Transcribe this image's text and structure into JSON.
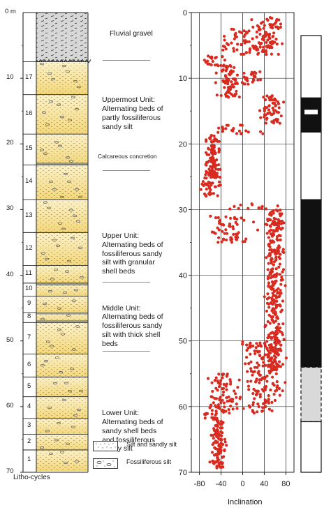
{
  "depth_axis": {
    "unit_label": "0 m",
    "ticks": [
      "10",
      "20",
      "30",
      "40",
      "50",
      "60",
      "70"
    ],
    "tick_values": [
      10,
      20,
      30,
      40,
      50,
      60,
      70
    ]
  },
  "column": {
    "footer_label": "Litho-cycles",
    "cycles": [
      {
        "label": "17",
        "top": 7.5,
        "bottom": 12.5
      },
      {
        "label": "16",
        "top": 12.5,
        "bottom": 18.5
      },
      {
        "label": "15",
        "top": 18.5,
        "bottom": 23.2
      },
      {
        "label": "14",
        "top": 23.2,
        "bottom": 28.5
      },
      {
        "label": "13",
        "top": 28.5,
        "bottom": 33.5
      },
      {
        "label": "12",
        "top": 33.5,
        "bottom": 38.5
      },
      {
        "label": "11",
        "top": 38.5,
        "bottom": 41.2
      },
      {
        "label": "10",
        "top": 41.2,
        "bottom": 43.2
      },
      {
        "label": "9",
        "top": 43.2,
        "bottom": 45.7
      },
      {
        "label": "8",
        "top": 45.7,
        "bottom": 47.2
      },
      {
        "label": "7",
        "top": 47.2,
        "bottom": 52.0
      },
      {
        "label": "6",
        "top": 52.0,
        "bottom": 55.5
      },
      {
        "label": "5",
        "top": 55.5,
        "bottom": 58.5
      },
      {
        "label": "4",
        "top": 58.5,
        "bottom": 61.8
      },
      {
        "label": "3",
        "top": 61.8,
        "bottom": 64.2
      },
      {
        "label": "2",
        "top": 64.2,
        "bottom": 66.6
      },
      {
        "label": "1",
        "top": 66.6,
        "bottom": 69.8
      }
    ],
    "gravel_bottom": 7.5,
    "colors": {
      "sand": "#f3d77a",
      "sand_light": "#fbf1c8",
      "gravel": "#d7d7d7",
      "line": "#222222"
    }
  },
  "units": [
    {
      "id": "fluvial",
      "text": "Fluvial gravel",
      "depth": 3.2,
      "sep_depth": 7.2
    },
    {
      "id": "uppermost",
      "text": "Uppermost Unit:\nAlternating beds of\npartly fossiliferous\nsandy silt",
      "depth": 13.3,
      "sep_depth": 24.0
    },
    {
      "id": "concretion",
      "text": "Calcareous concretion",
      "depth": 22.0
    },
    {
      "id": "upper",
      "text": "Upper Unit:\nAlternating beds of\nfossiliferous sandy\nsilt with granular\nshell beds",
      "depth": 34.0,
      "sep_depth": 41.0
    },
    {
      "id": "middle",
      "text": "Middle Unit:\nAlternating beds of\nfossiliferous sandy\nsilt with thick shell\nbeds",
      "depth": 45.0,
      "sep_depth": 51.5
    },
    {
      "id": "lower",
      "text": "Lower Unit:\nAlternating beds of\nsandy shell beds\nand fossiliferous\nsandy silt",
      "depth": 61.0
    }
  ],
  "legend": [
    {
      "id": "silt",
      "text": "Silt and sandly silt"
    },
    {
      "id": "fossil",
      "text": "Fossiliferous silt"
    }
  ],
  "chart_data": {
    "type": "scatter",
    "xlabel": "Inclination",
    "ylabel": "",
    "xlim": [
      -95,
      95
    ],
    "ylim": [
      70,
      0
    ],
    "x_ticks": [
      -80,
      -40,
      0,
      40,
      80
    ],
    "y_ticks": [
      0,
      10,
      20,
      30,
      40,
      50,
      60,
      70
    ],
    "grid": "vertical lines at x ticks",
    "series": [
      {
        "color": "#d92a20",
        "clusters": [
          {
            "y": [
              0.5,
              6.5
            ],
            "x_mean": 45,
            "x_spread": 28
          },
          {
            "y": [
              2.5,
              6.5
            ],
            "x_mean": 5,
            "x_spread": 45
          },
          {
            "y": [
              6.5,
              8.0
            ],
            "x_mean": -60,
            "x_spread": 25
          },
          {
            "y": [
              8.0,
              13.0
            ],
            "x_mean": -25,
            "x_spread": 22
          },
          {
            "y": [
              9.0,
              11.0
            ],
            "x_mean": 10,
            "x_spread": 30
          },
          {
            "y": [
              12.5,
              17.0
            ],
            "x_mean": 55,
            "x_spread": 20
          },
          {
            "y": [
              17.0,
              18.5
            ],
            "x_mean": -10,
            "x_spread": 55
          },
          {
            "y": [
              18.5,
              25.0
            ],
            "x_mean": -55,
            "x_spread": 13
          },
          {
            "y": [
              24.0,
              28.0
            ],
            "x_mean": -60,
            "x_spread": 18
          },
          {
            "y": [
              29.0,
              30.0
            ],
            "x_mean": 30,
            "x_spread": 55
          },
          {
            "y": [
              30.0,
              55.0
            ],
            "x_mean": 58,
            "x_spread": 18
          },
          {
            "y": [
              31.0,
              35.0
            ],
            "x_mean": -25,
            "x_spread": 45
          },
          {
            "y": [
              50.0,
              55.0
            ],
            "x_mean": 35,
            "x_spread": 40
          },
          {
            "y": [
              55.0,
              61.0
            ],
            "x_mean": -35,
            "x_spread": 30
          },
          {
            "y": [
              55.0,
              61.0
            ],
            "x_mean": 40,
            "x_spread": 40
          },
          {
            "y": [
              61.0,
              62.0
            ],
            "x_mean": -60,
            "x_spread": 25
          },
          {
            "y": [
              62.0,
              69.5
            ],
            "x_mean": -45,
            "x_spread": 15
          }
        ]
      }
    ]
  },
  "polarity": {
    "zones": [
      {
        "top": 3.5,
        "bottom": 13.0,
        "state": "normal"
      },
      {
        "top": 13.0,
        "bottom": 18.2,
        "state": "reversed",
        "inner_white": [
          14.8,
          15.5
        ]
      },
      {
        "top": 18.2,
        "bottom": 28.5,
        "state": "normal"
      },
      {
        "top": 28.5,
        "bottom": 54.0,
        "state": "reversed"
      },
      {
        "top": 54.0,
        "bottom": 62.3,
        "state": "uncertain"
      },
      {
        "top": 62.3,
        "bottom": 70.0,
        "state": "normal"
      }
    ],
    "colors": {
      "reversed": "#111111",
      "normal": "#ffffff",
      "uncertain": "#d9d9d9"
    }
  }
}
